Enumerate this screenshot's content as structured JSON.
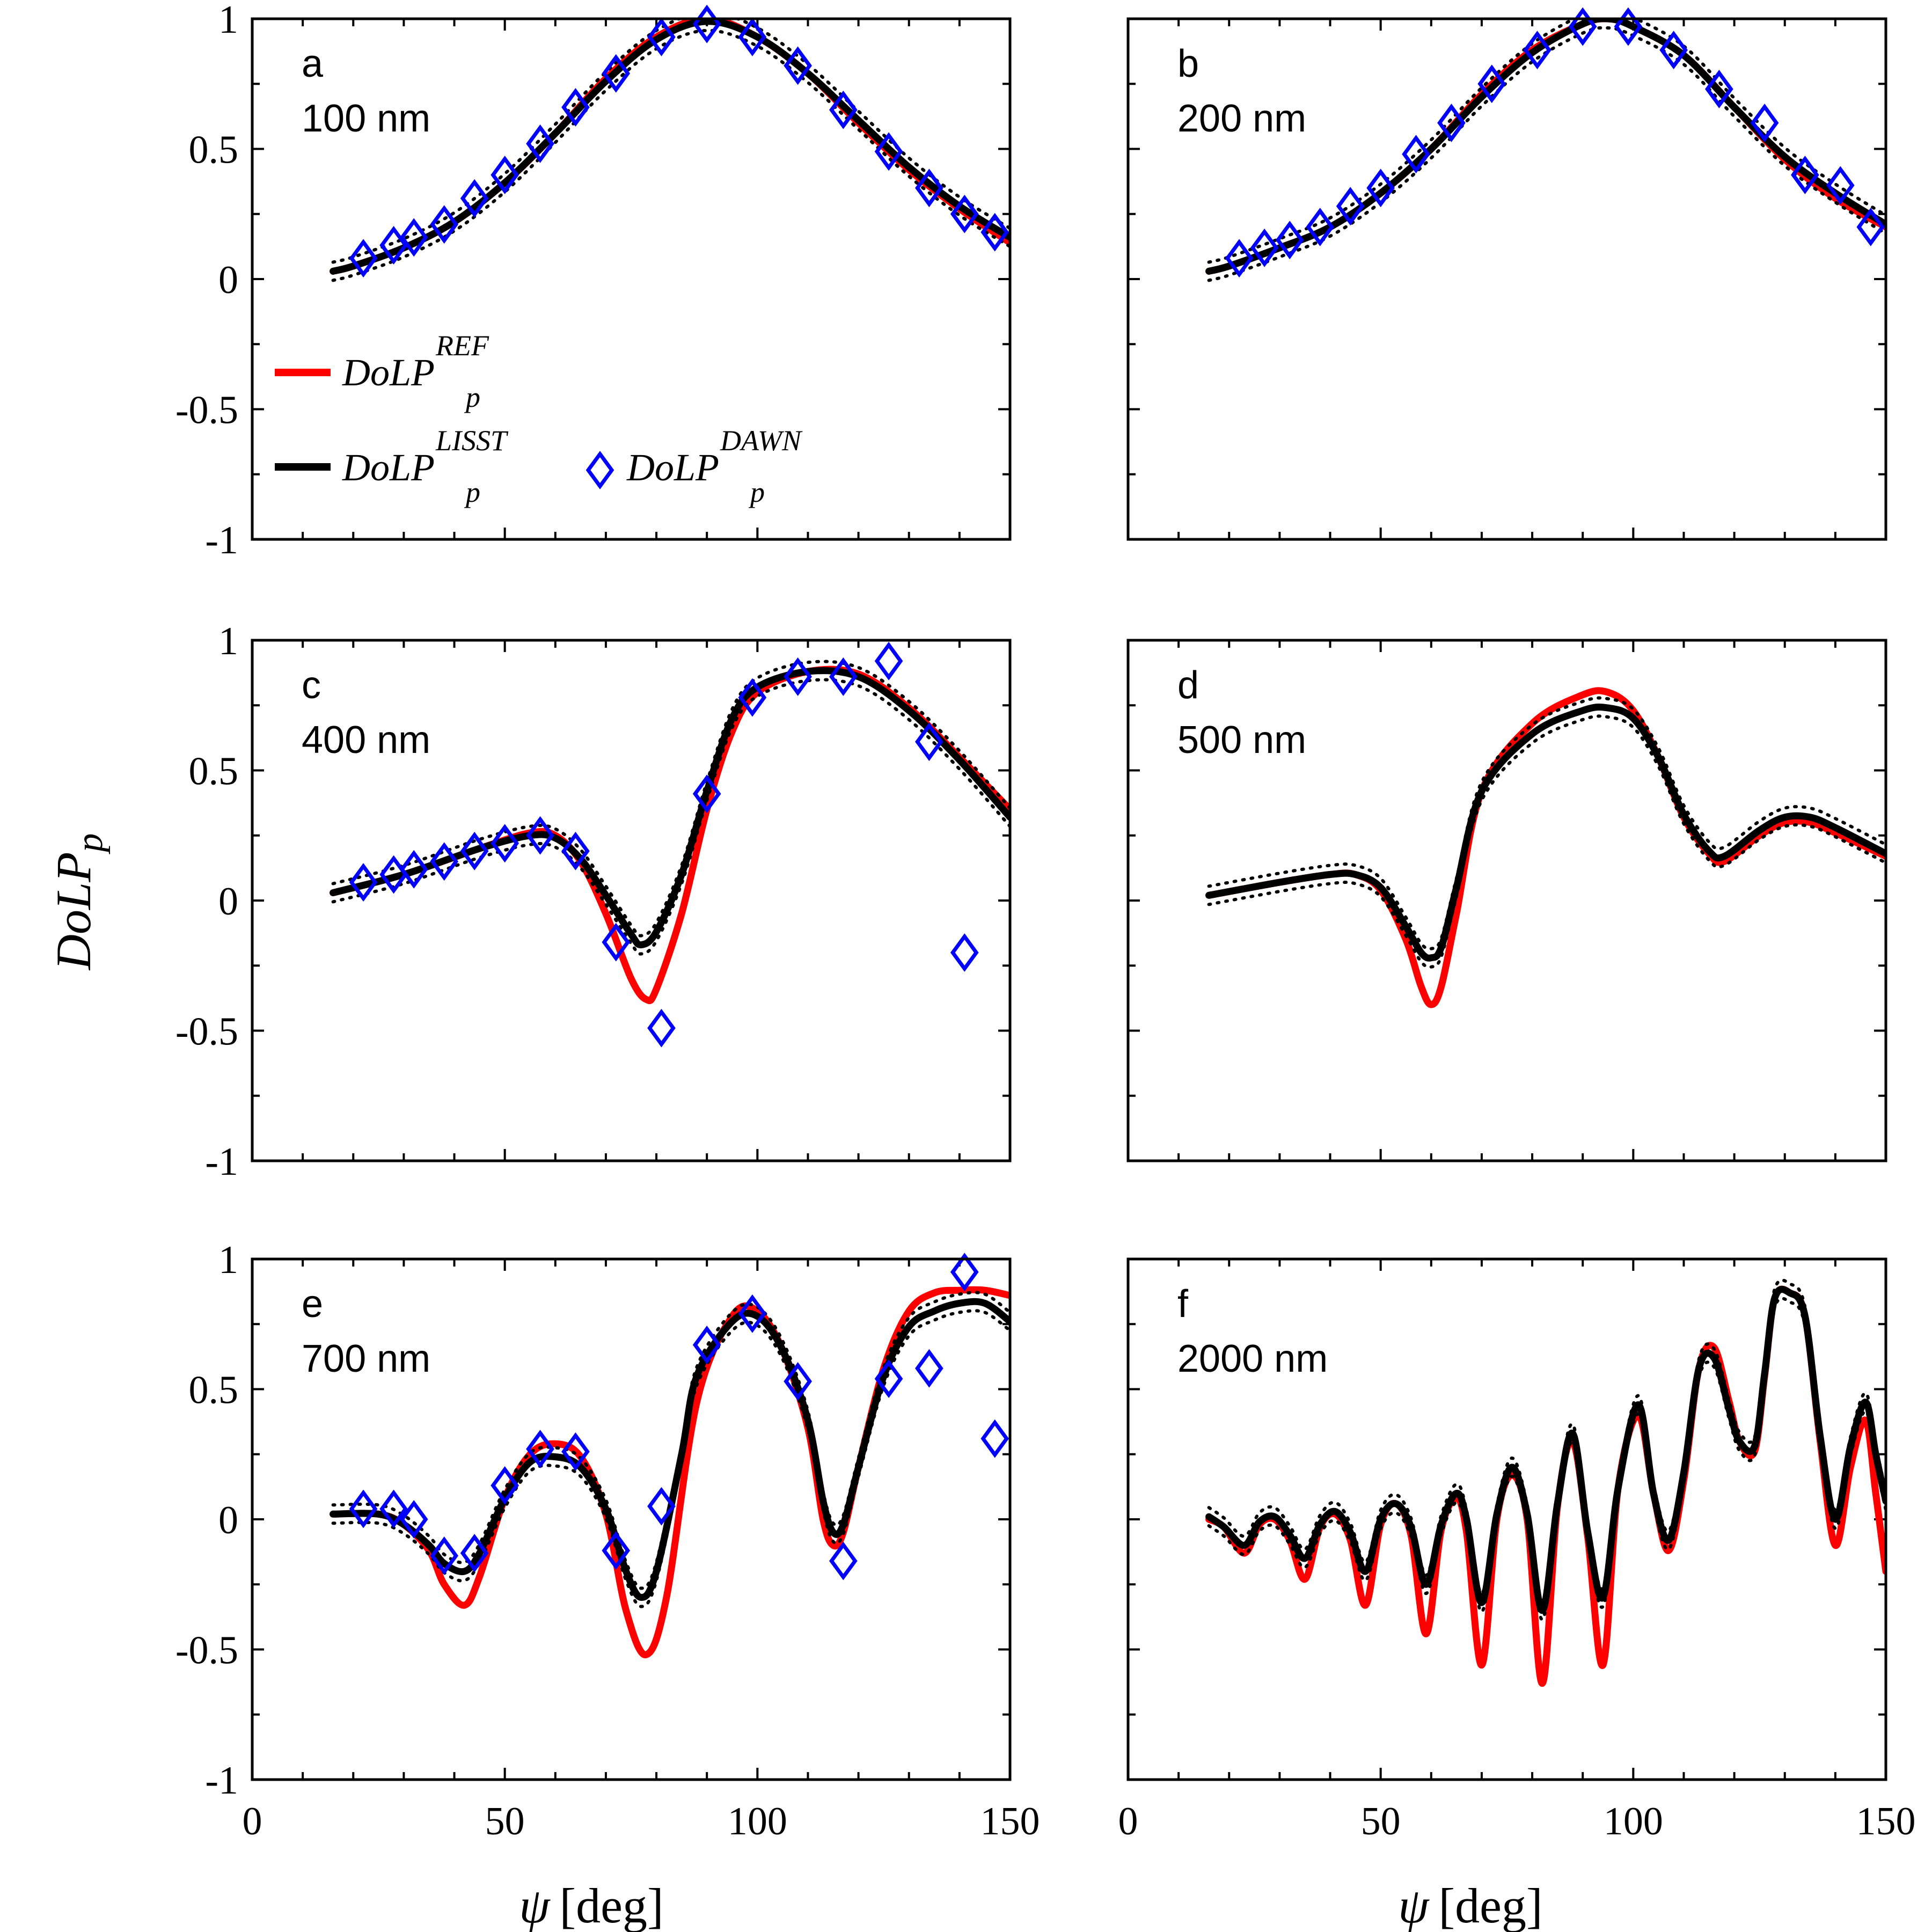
{
  "figure": {
    "ylabel_main": "DoLP",
    "ylabel_sub": "p",
    "xlabel_sym": "ψ",
    "xlabel_unit": "[deg]",
    "legend": {
      "ref": {
        "main": "DoLP",
        "sub": "p",
        "sup": "REF",
        "color": "#ff0000"
      },
      "lisst": {
        "main": "DoLP",
        "sub": "p",
        "sup": "LISST",
        "color": "#000000"
      },
      "dawn": {
        "main": "DoLP",
        "sub": "p",
        "sup": "DAWN",
        "color": "#0000ff"
      }
    }
  },
  "chart_data": [
    {
      "type": "line",
      "panel": "a",
      "label": "100 nm",
      "xlim": [
        0,
        150
      ],
      "ylim": [
        -1,
        1
      ],
      "xticks": [
        0,
        50,
        100,
        150
      ],
      "yticks": [
        -1,
        -0.5,
        0,
        0.5,
        1
      ],
      "yticklabels": [
        "-1",
        "-0.5",
        "0",
        "0.5",
        "1"
      ],
      "series": [
        {
          "name": "DoLP_p^REF",
          "x": [
            16,
            20,
            30,
            40,
            50,
            60,
            70,
            80,
            90,
            100,
            110,
            120,
            130,
            140,
            150
          ],
          "y": [
            0.03,
            0.05,
            0.12,
            0.22,
            0.37,
            0.56,
            0.77,
            0.93,
            1.0,
            0.93,
            0.79,
            0.6,
            0.42,
            0.27,
            0.14
          ]
        },
        {
          "name": "DoLP_p^LISST",
          "x": [
            16,
            20,
            30,
            40,
            50,
            60,
            70,
            80,
            90,
            100,
            110,
            120,
            130,
            140,
            150
          ],
          "y": [
            0.03,
            0.05,
            0.12,
            0.22,
            0.37,
            0.56,
            0.76,
            0.92,
            0.99,
            0.93,
            0.79,
            0.61,
            0.43,
            0.28,
            0.16
          ]
        },
        {
          "name": "DoLP_p^DAWN",
          "x": [
            22,
            28,
            32,
            38,
            44,
            50,
            57,
            64,
            72,
            81,
            90,
            99,
            108,
            117,
            126,
            134,
            141,
            147
          ],
          "y": [
            0.08,
            0.13,
            0.16,
            0.21,
            0.31,
            0.4,
            0.52,
            0.66,
            0.79,
            0.93,
            0.98,
            0.93,
            0.82,
            0.65,
            0.49,
            0.35,
            0.25,
            0.18
          ]
        }
      ]
    },
    {
      "type": "line",
      "panel": "b",
      "label": "200 nm",
      "xlim": [
        0,
        150
      ],
      "ylim": [
        -1,
        1
      ],
      "xticks": [
        0,
        50,
        100,
        150
      ],
      "yticks": [
        -1,
        -0.5,
        0,
        0.5,
        1
      ],
      "series": [
        {
          "name": "DoLP_p^REF",
          "x": [
            16,
            20,
            30,
            40,
            50,
            60,
            70,
            80,
            90,
            95,
            100,
            110,
            120,
            130,
            140,
            150
          ],
          "y": [
            0.03,
            0.05,
            0.12,
            0.2,
            0.33,
            0.5,
            0.71,
            0.88,
            0.98,
            1.0,
            0.97,
            0.86,
            0.66,
            0.46,
            0.31,
            0.2
          ]
        },
        {
          "name": "DoLP_p^LISST",
          "x": [
            16,
            20,
            30,
            40,
            50,
            60,
            70,
            80,
            90,
            95,
            100,
            110,
            120,
            130,
            140,
            150
          ],
          "y": [
            0.03,
            0.05,
            0.12,
            0.2,
            0.33,
            0.5,
            0.7,
            0.87,
            0.98,
            1.0,
            0.97,
            0.86,
            0.66,
            0.47,
            0.33,
            0.21
          ]
        },
        {
          "name": "DoLP_p^DAWN",
          "x": [
            22,
            27,
            32,
            38,
            44,
            50,
            57,
            64,
            72,
            81,
            90,
            99,
            108,
            117,
            126,
            134,
            141,
            147
          ],
          "y": [
            0.08,
            0.12,
            0.15,
            0.2,
            0.28,
            0.35,
            0.48,
            0.6,
            0.75,
            0.88,
            0.97,
            0.97,
            0.88,
            0.73,
            0.6,
            0.4,
            0.36,
            0.2
          ]
        }
      ]
    },
    {
      "type": "line",
      "panel": "c",
      "label": "400 nm",
      "xlim": [
        0,
        150
      ],
      "ylim": [
        -1,
        1
      ],
      "xticks": [
        0,
        50,
        100,
        150
      ],
      "yticks": [
        -1,
        -0.5,
        0,
        0.5,
        1
      ],
      "series": [
        {
          "name": "DoLP_p^REF",
          "x": [
            16,
            30,
            45,
            55,
            60,
            65,
            70,
            75,
            78,
            80,
            85,
            90,
            95,
            100,
            110,
            120,
            130,
            140,
            150
          ],
          "y": [
            0.03,
            0.1,
            0.2,
            0.26,
            0.25,
            0.15,
            -0.05,
            -0.3,
            -0.38,
            -0.34,
            -0.05,
            0.35,
            0.65,
            0.8,
            0.88,
            0.87,
            0.74,
            0.55,
            0.35
          ]
        },
        {
          "name": "DoLP_p^LISST",
          "x": [
            16,
            30,
            45,
            55,
            60,
            65,
            70,
            75,
            77,
            80,
            85,
            90,
            95,
            100,
            110,
            120,
            130,
            140,
            150
          ],
          "y": [
            0.03,
            0.1,
            0.2,
            0.25,
            0.24,
            0.16,
            0.02,
            -0.13,
            -0.17,
            -0.12,
            0.1,
            0.42,
            0.7,
            0.82,
            0.88,
            0.86,
            0.73,
            0.54,
            0.32
          ]
        },
        {
          "name": "DoLP_p^DAWN",
          "x": [
            22,
            28,
            32,
            38,
            44,
            50,
            57,
            64,
            72,
            81,
            90,
            99,
            108,
            117,
            126,
            134,
            141
          ],
          "y": [
            0.07,
            0.1,
            0.12,
            0.15,
            0.19,
            0.22,
            0.25,
            0.19,
            -0.16,
            -0.49,
            0.41,
            0.78,
            0.86,
            0.86,
            0.92,
            0.61,
            -0.2
          ]
        }
      ]
    },
    {
      "type": "line",
      "panel": "d",
      "label": "500 nm",
      "xlim": [
        0,
        150
      ],
      "ylim": [
        -1,
        1
      ],
      "xticks": [
        0,
        50,
        100,
        150
      ],
      "yticks": [
        -1,
        -0.5,
        0,
        0.5,
        1
      ],
      "series": [
        {
          "name": "DoLP_p^REF",
          "x": [
            16,
            30,
            40,
            45,
            50,
            55,
            58,
            60,
            62,
            65,
            70,
            80,
            90,
            95,
            100,
            105,
            110,
            115,
            118,
            125,
            130,
            135,
            140,
            150
          ],
          "y": [
            0.02,
            0.07,
            0.1,
            0.1,
            0.04,
            -0.15,
            -0.33,
            -0.4,
            -0.33,
            -0.05,
            0.42,
            0.68,
            0.79,
            0.8,
            0.73,
            0.55,
            0.32,
            0.18,
            0.15,
            0.25,
            0.3,
            0.3,
            0.26,
            0.17
          ]
        },
        {
          "name": "DoLP_p^LISST",
          "x": [
            16,
            30,
            40,
            45,
            50,
            55,
            58,
            60,
            62,
            65,
            70,
            80,
            90,
            95,
            100,
            105,
            110,
            115,
            118,
            125,
            130,
            135,
            140,
            150
          ],
          "y": [
            0.02,
            0.07,
            0.1,
            0.1,
            0.05,
            -0.1,
            -0.2,
            -0.22,
            -0.18,
            0.05,
            0.42,
            0.64,
            0.73,
            0.74,
            0.7,
            0.55,
            0.33,
            0.19,
            0.17,
            0.27,
            0.32,
            0.32,
            0.28,
            0.18
          ]
        }
      ]
    },
    {
      "type": "line",
      "panel": "e",
      "label": "700 nm",
      "xlim": [
        0,
        150
      ],
      "ylim": [
        -1,
        1
      ],
      "xticks": [
        0,
        50,
        100,
        150
      ],
      "yticks": [
        -1,
        -0.5,
        0,
        0.5,
        1
      ],
      "series": [
        {
          "name": "DoLP_p^REF",
          "x": [
            16,
            25,
            30,
            35,
            38,
            42,
            45,
            50,
            55,
            60,
            65,
            70,
            74,
            78,
            82,
            88,
            95,
            100,
            105,
            110,
            113,
            115,
            117,
            120,
            125,
            130,
            135,
            140,
            145,
            150
          ],
          "y": [
            0.02,
            0.02,
            -0.02,
            -0.12,
            -0.25,
            -0.33,
            -0.22,
            0.08,
            0.25,
            0.29,
            0.24,
            0.02,
            -0.35,
            -0.52,
            -0.3,
            0.45,
            0.78,
            0.8,
            0.65,
            0.35,
            0.0,
            -0.1,
            -0.05,
            0.2,
            0.58,
            0.8,
            0.87,
            0.88,
            0.88,
            0.86
          ]
        },
        {
          "name": "DoLP_p^LISST",
          "x": [
            16,
            25,
            30,
            35,
            38,
            42,
            45,
            50,
            55,
            60,
            65,
            70,
            74,
            77,
            80,
            85,
            88,
            95,
            100,
            105,
            110,
            113,
            115,
            117,
            120,
            125,
            130,
            135,
            140,
            145,
            150
          ],
          "y": [
            0.02,
            0.02,
            -0.02,
            -0.1,
            -0.17,
            -0.2,
            -0.13,
            0.08,
            0.22,
            0.24,
            0.2,
            0.04,
            -0.2,
            -0.3,
            -0.2,
            0.25,
            0.55,
            0.76,
            0.78,
            0.65,
            0.38,
            0.07,
            -0.05,
            -0.02,
            0.2,
            0.55,
            0.74,
            0.8,
            0.83,
            0.83,
            0.76
          ]
        },
        {
          "name": "DoLP_p^DAWN",
          "x": [
            22,
            28,
            32,
            38,
            44,
            50,
            57,
            64,
            72,
            81,
            90,
            99,
            108,
            117,
            126,
            134,
            141,
            147
          ],
          "y": [
            0.04,
            0.04,
            0.0,
            -0.14,
            -0.13,
            0.13,
            0.27,
            0.26,
            -0.12,
            0.05,
            0.67,
            0.79,
            0.53,
            -0.16,
            0.54,
            0.58,
            0.95,
            0.31
          ]
        }
      ]
    },
    {
      "type": "line",
      "panel": "f",
      "label": "2000 nm",
      "xlim": [
        0,
        150
      ],
      "ylim": [
        -1,
        1
      ],
      "xticks": [
        0,
        50,
        100,
        150
      ],
      "yticks": [
        -1,
        -0.5,
        0,
        0.5,
        1
      ],
      "series": [
        {
          "name": "DoLP_p^REF",
          "x": [
            16,
            19,
            23,
            26,
            29,
            32,
            35,
            38,
            41,
            44,
            47,
            50,
            53,
            56,
            59,
            62,
            65,
            67,
            70,
            73,
            76,
            79,
            82,
            85,
            88,
            91,
            94,
            97,
            101,
            104,
            107,
            110,
            113,
            116,
            119,
            121,
            124,
            126,
            128,
            131,
            134,
            137,
            140,
            143,
            146,
            148,
            150
          ],
          "y": [
            0.0,
            -0.03,
            -0.13,
            -0.02,
            0.0,
            -0.08,
            -0.23,
            -0.03,
            0.02,
            -0.08,
            -0.33,
            -0.02,
            0.06,
            -0.06,
            -0.44,
            -0.04,
            0.08,
            -0.05,
            -0.56,
            0.0,
            0.17,
            0.0,
            -0.63,
            0.05,
            0.3,
            -0.07,
            -0.56,
            0.12,
            0.4,
            0.1,
            -0.12,
            0.15,
            0.58,
            0.66,
            0.45,
            0.3,
            0.26,
            0.55,
            0.85,
            0.87,
            0.78,
            0.3,
            -0.1,
            0.2,
            0.38,
            0.1,
            -0.2
          ]
        },
        {
          "name": "DoLP_p^LISST",
          "x": [
            16,
            19,
            23,
            26,
            29,
            32,
            35,
            38,
            41,
            44,
            47,
            50,
            53,
            56,
            59,
            62,
            65,
            67,
            70,
            73,
            76,
            79,
            82,
            85,
            88,
            91,
            94,
            97,
            101,
            104,
            107,
            110,
            113,
            116,
            119,
            121,
            124,
            126,
            128,
            131,
            134,
            137,
            140,
            143,
            146,
            148,
            150
          ],
          "y": [
            0.01,
            -0.03,
            -0.1,
            -0.01,
            0.01,
            -0.06,
            -0.15,
            -0.02,
            0.03,
            -0.05,
            -0.2,
            0.0,
            0.06,
            -0.03,
            -0.25,
            -0.02,
            0.1,
            0.0,
            -0.32,
            0.02,
            0.2,
            0.02,
            -0.35,
            0.06,
            0.33,
            -0.05,
            -0.3,
            0.12,
            0.44,
            0.1,
            -0.08,
            0.18,
            0.58,
            0.62,
            0.42,
            0.3,
            0.28,
            0.56,
            0.85,
            0.87,
            0.78,
            0.32,
            0.0,
            0.28,
            0.45,
            0.25,
            0.07
          ]
        }
      ]
    }
  ]
}
